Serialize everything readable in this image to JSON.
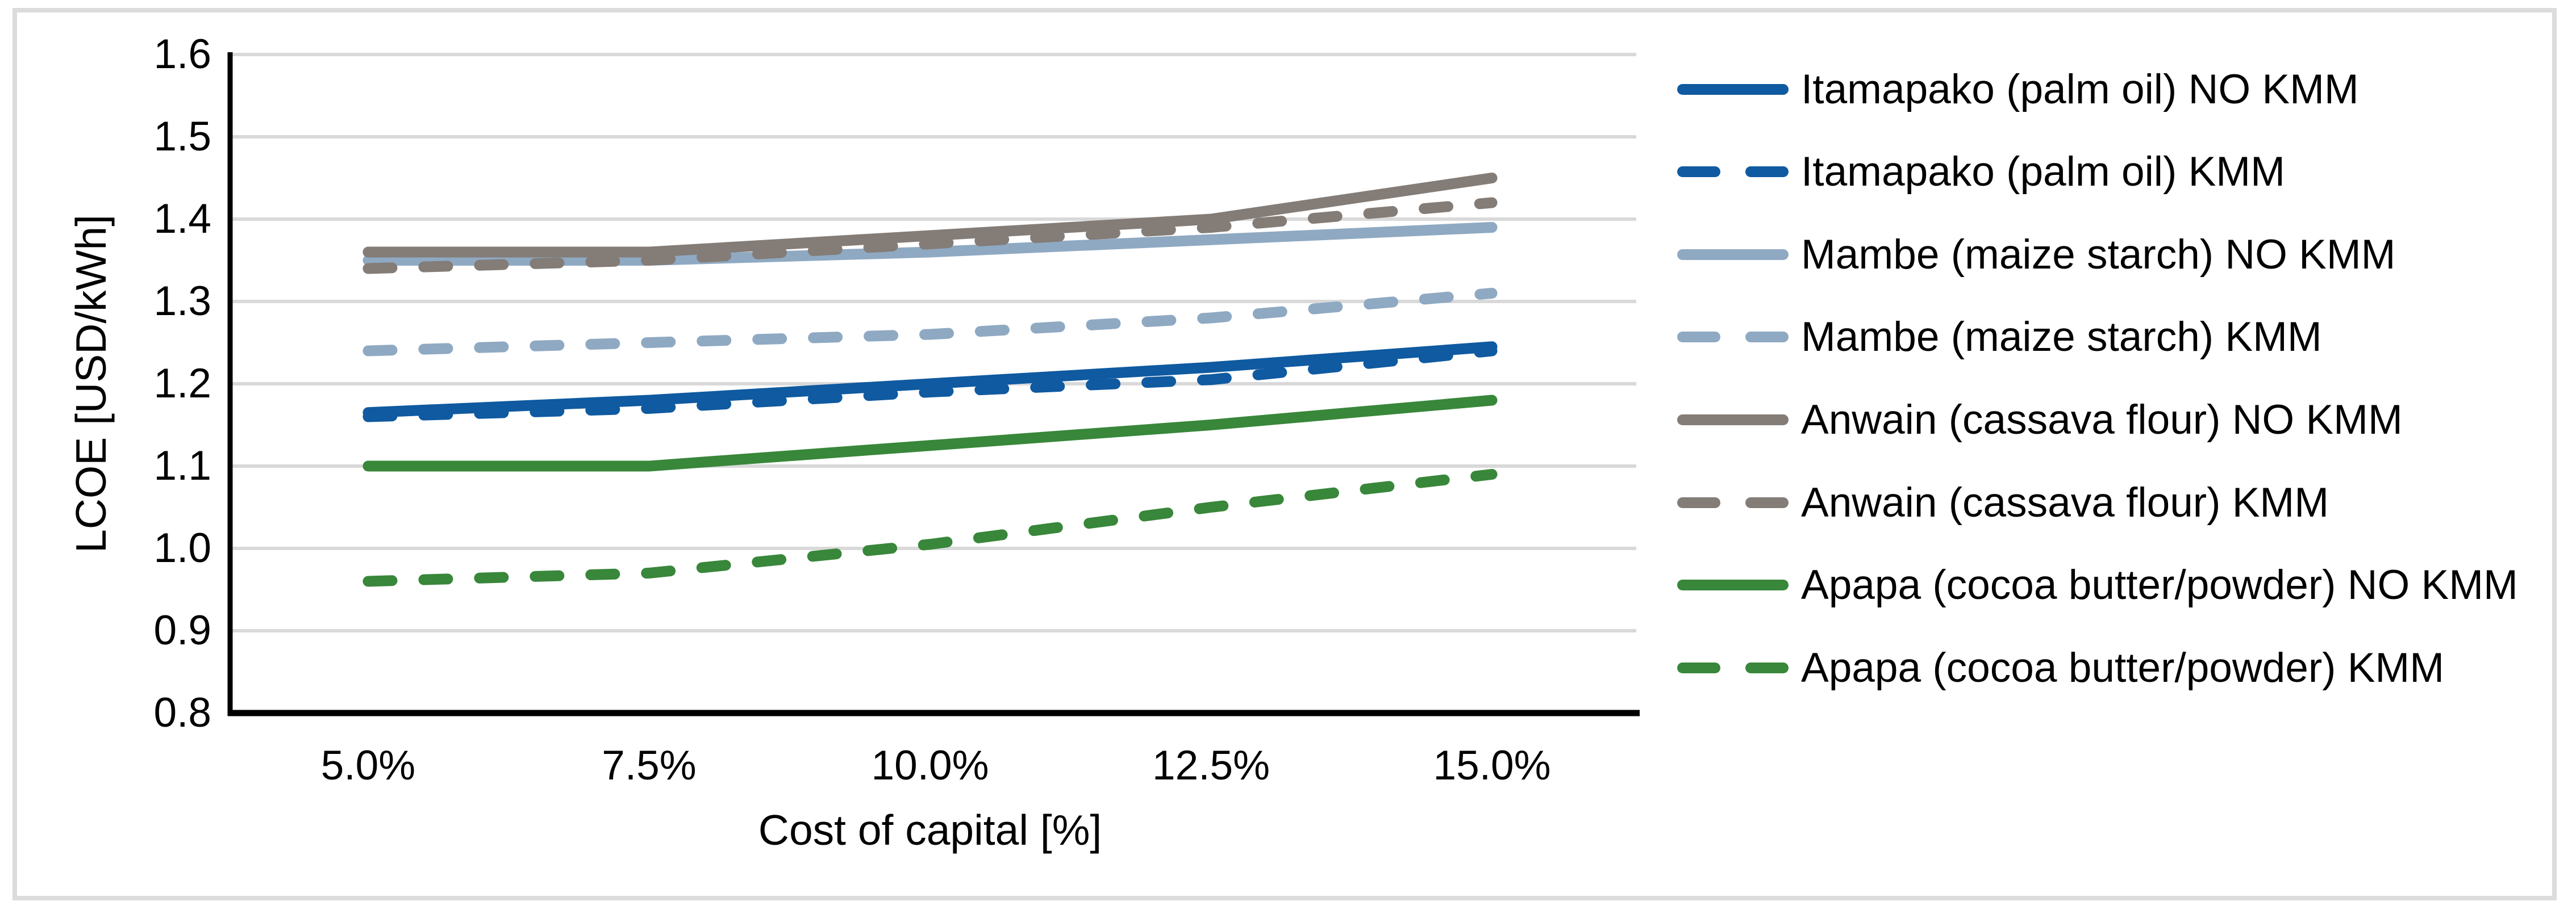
{
  "frame": {
    "border_color": "#dcdcdc",
    "background": "#ffffff"
  },
  "chart_data": {
    "type": "line",
    "title": "",
    "xlabel": "Cost of capital [%]",
    "ylabel": "LCOE [USD/kWh]",
    "x_values": [
      5.0,
      7.5,
      10.0,
      12.5,
      15.0
    ],
    "x_tick_labels": [
      "5.0%",
      "7.5%",
      "10.0%",
      "12.5%",
      "15.0%"
    ],
    "ylim": [
      0.8,
      1.6
    ],
    "y_ticks": [
      0.8,
      0.9,
      1.0,
      1.1,
      1.2,
      1.3,
      1.4,
      1.5,
      1.6
    ],
    "y_tick_labels": [
      "0.8",
      "0.9",
      "1.0",
      "1.1",
      "1.2",
      "1.3",
      "1.4",
      "1.5",
      "1.6"
    ],
    "grid": "horizontal",
    "gridline_color": "#d9d9d9",
    "axis_color": "#000000",
    "legend_position": "right",
    "series": [
      {
        "name": "Itamapako (palm oil) NO KMM",
        "color": "#0f5aa0",
        "style": "solid",
        "values": [
          1.165,
          1.18,
          1.2,
          1.22,
          1.245
        ]
      },
      {
        "name": "Itamapako (palm oil) KMM",
        "color": "#0f5aa0",
        "style": "dashed",
        "values": [
          1.16,
          1.17,
          1.19,
          1.205,
          1.24
        ]
      },
      {
        "name": "Mambe (maize starch) NO KMM",
        "color": "#8fa9c2",
        "style": "solid",
        "values": [
          1.35,
          1.35,
          1.36,
          1.375,
          1.39
        ]
      },
      {
        "name": "Mambe (maize starch) KMM",
        "color": "#8fa9c2",
        "style": "dashed",
        "values": [
          1.24,
          1.25,
          1.26,
          1.28,
          1.31
        ]
      },
      {
        "name": "Anwain (cassava flour) NO KMM",
        "color": "#837c77",
        "style": "solid",
        "values": [
          1.36,
          1.36,
          1.38,
          1.4,
          1.45
        ]
      },
      {
        "name": "Anwain (cassava flour) KMM",
        "color": "#837c77",
        "style": "dashed",
        "values": [
          1.34,
          1.35,
          1.37,
          1.39,
          1.42
        ]
      },
      {
        "name": "Apapa (cocoa butter/powder) NO KMM",
        "color": "#38873a",
        "style": "solid",
        "values": [
          1.1,
          1.1,
          1.125,
          1.15,
          1.18
        ]
      },
      {
        "name": "Apapa (cocoa butter/powder) KMM",
        "color": "#38873a",
        "style": "dashed",
        "values": [
          0.96,
          0.97,
          1.005,
          1.05,
          1.09
        ]
      }
    ]
  }
}
